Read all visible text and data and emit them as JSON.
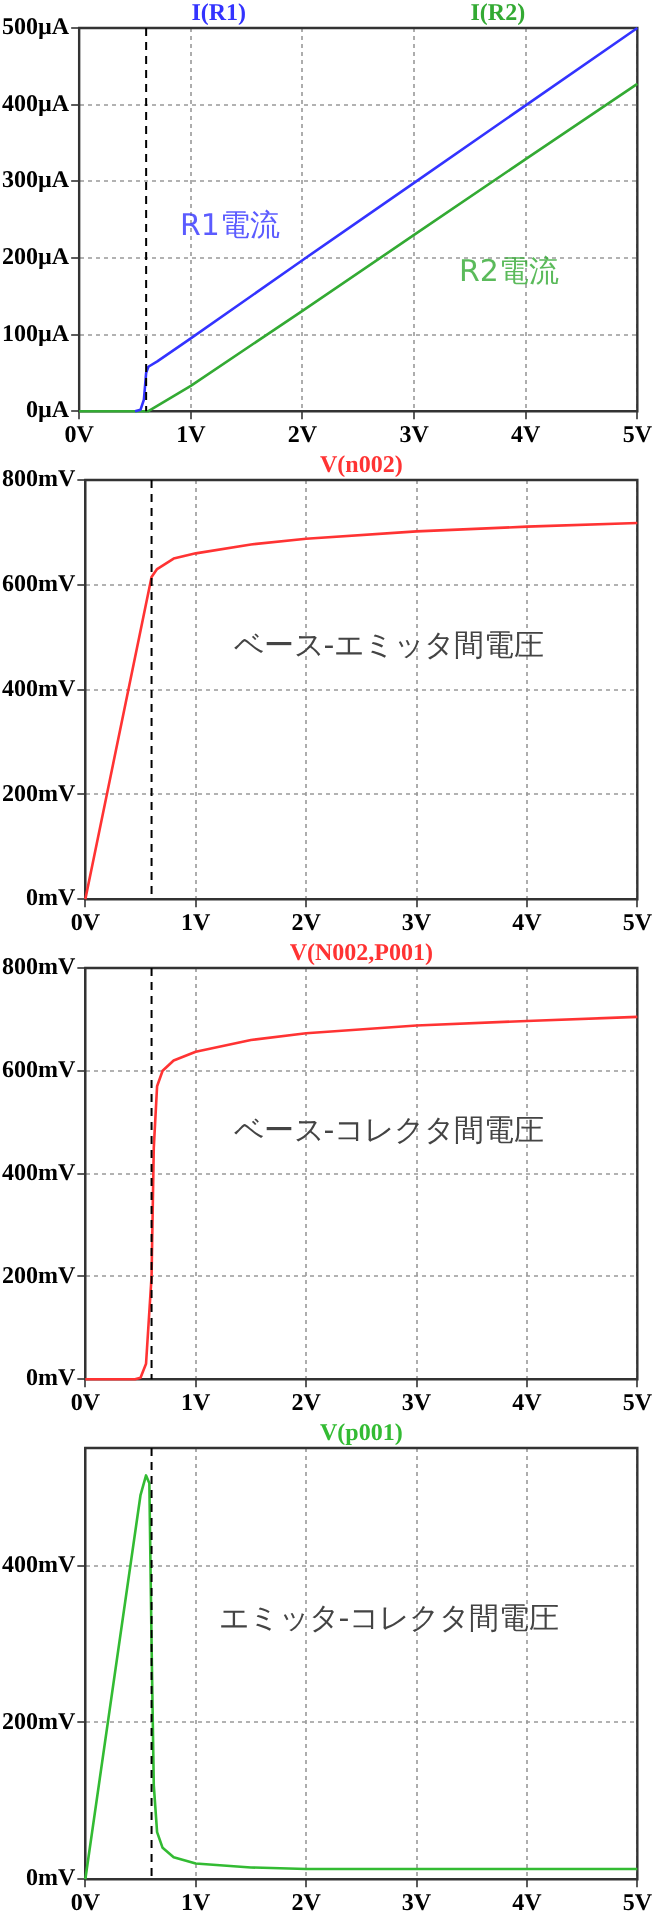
{
  "chart_data": [
    {
      "type": "line",
      "xlim": [
        0,
        5
      ],
      "xticks": [
        {
          "value": 0,
          "label": "0V"
        },
        {
          "value": 1,
          "label": "1V"
        },
        {
          "value": 2,
          "label": "2V"
        },
        {
          "value": 3,
          "label": "3V"
        },
        {
          "value": 4,
          "label": "4V"
        },
        {
          "value": 5,
          "label": "5V"
        }
      ],
      "ylim": [
        0,
        500
      ],
      "yticks": [
        {
          "value": 0,
          "label": "0µA"
        },
        {
          "value": 100,
          "label": "100µA"
        },
        {
          "value": 200,
          "label": "200µA"
        },
        {
          "value": 300,
          "label": "300µA"
        },
        {
          "value": 400,
          "label": "400µA"
        },
        {
          "value": 500,
          "label": "500µA"
        }
      ],
      "series": [
        {
          "name": "I(R1)",
          "color": "#3333ff",
          "x": [
            0.5,
            0.55,
            0.58,
            0.6,
            0.62,
            0.7,
            1,
            2,
            3,
            4,
            5
          ],
          "values": [
            0,
            2,
            15,
            50,
            58,
            65,
            95,
            197,
            298,
            399,
            500
          ]
        },
        {
          "name": "I(R2)",
          "color": "#33aa33",
          "x": [
            0,
            0.62,
            1,
            2,
            3,
            4,
            5
          ],
          "values": [
            0,
            0,
            33,
            131,
            230,
            329,
            427
          ]
        }
      ],
      "annotations": [
        "R1電流",
        "R2電流"
      ],
      "ref_lines": [
        {
          "axis": "x",
          "value": 0.6,
          "line_style": "dashed",
          "color": "#000000"
        }
      ],
      "grid": true,
      "legend": "top",
      "line_style": "solid",
      "marker": "none"
    },
    {
      "type": "line",
      "x": [
        0,
        0.6,
        0.65,
        0.8,
        1,
        1.5,
        2,
        3,
        4,
        5
      ],
      "xlim": [
        0,
        5
      ],
      "xticks": [
        {
          "value": 0,
          "label": "0V"
        },
        {
          "value": 1,
          "label": "1V"
        },
        {
          "value": 2,
          "label": "2V"
        },
        {
          "value": 3,
          "label": "3V"
        },
        {
          "value": 4,
          "label": "4V"
        },
        {
          "value": 5,
          "label": "5V"
        }
      ],
      "ylim": [
        0,
        800
      ],
      "yticks": [
        {
          "value": 0,
          "label": "0mV"
        },
        {
          "value": 200,
          "label": "200mV"
        },
        {
          "value": 400,
          "label": "400mV"
        },
        {
          "value": 600,
          "label": "600mV"
        },
        {
          "value": 800,
          "label": "800mV"
        }
      ],
      "series": [
        {
          "name": "V(n002)",
          "color": "#ff3333",
          "values": [
            0,
            615,
            630,
            650,
            660,
            677,
            688,
            702,
            711,
            718
          ]
        }
      ],
      "annotations": [
        "ベース-エミッタ間電圧"
      ],
      "ref_lines": [
        {
          "axis": "x",
          "value": 0.6,
          "line_style": "dashed",
          "color": "#000000"
        }
      ],
      "grid": true,
      "legend": "top",
      "line_style": "solid",
      "marker": "none"
    },
    {
      "type": "line",
      "x": [
        0,
        0.45,
        0.5,
        0.55,
        0.6,
        0.62,
        0.65,
        0.7,
        0.8,
        1,
        1.5,
        2,
        3,
        4,
        5
      ],
      "xlim": [
        0,
        5
      ],
      "xticks": [
        {
          "value": 0,
          "label": "0V"
        },
        {
          "value": 1,
          "label": "1V"
        },
        {
          "value": 2,
          "label": "2V"
        },
        {
          "value": 3,
          "label": "3V"
        },
        {
          "value": 4,
          "label": "4V"
        },
        {
          "value": 5,
          "label": "5V"
        }
      ],
      "ylim": [
        0,
        800
      ],
      "yticks": [
        {
          "value": 0,
          "label": "0mV"
        },
        {
          "value": 200,
          "label": "200mV"
        },
        {
          "value": 400,
          "label": "400mV"
        },
        {
          "value": 600,
          "label": "600mV"
        },
        {
          "value": 800,
          "label": "800mV"
        }
      ],
      "series": [
        {
          "name": "V(N002,P001)",
          "color": "#ff3333",
          "values": [
            0,
            0,
            3,
            30,
            200,
            450,
            570,
            600,
            620,
            637,
            660,
            673,
            688,
            697,
            705
          ]
        }
      ],
      "annotations": [
        "ベース-コレクタ間電圧"
      ],
      "ref_lines": [
        {
          "axis": "x",
          "value": 0.6,
          "line_style": "dashed",
          "color": "#000000"
        }
      ],
      "grid": true,
      "legend": "top",
      "line_style": "solid",
      "marker": "none"
    },
    {
      "type": "line",
      "x": [
        0,
        0.5,
        0.55,
        0.58,
        0.6,
        0.62,
        0.65,
        0.7,
        0.8,
        1,
        1.5,
        2,
        3,
        5
      ],
      "xlim": [
        0,
        5
      ],
      "xticks": [
        {
          "value": 0,
          "label": "0V"
        },
        {
          "value": 1,
          "label": "1V"
        },
        {
          "value": 2,
          "label": "2V"
        },
        {
          "value": 3,
          "label": "3V"
        },
        {
          "value": 4,
          "label": "4V"
        },
        {
          "value": 5,
          "label": "5V"
        }
      ],
      "ylim": [
        0,
        550
      ],
      "yticks": [
        {
          "value": 0,
          "label": "0mV"
        },
        {
          "value": 200,
          "label": "200mV"
        },
        {
          "value": 400,
          "label": "400mV"
        }
      ],
      "series": [
        {
          "name": "V(p001)",
          "color": "#33bb33",
          "values": [
            0,
            490,
            515,
            505,
            300,
            120,
            60,
            40,
            28,
            20,
            15,
            13,
            13,
            13
          ]
        }
      ],
      "annotations": [
        "エミッタ-コレクタ間電圧"
      ],
      "ref_lines": [
        {
          "axis": "x",
          "value": 0.6,
          "line_style": "dashed",
          "color": "#000000"
        }
      ],
      "grid": true,
      "legend": "top",
      "line_style": "solid",
      "marker": "none"
    }
  ]
}
